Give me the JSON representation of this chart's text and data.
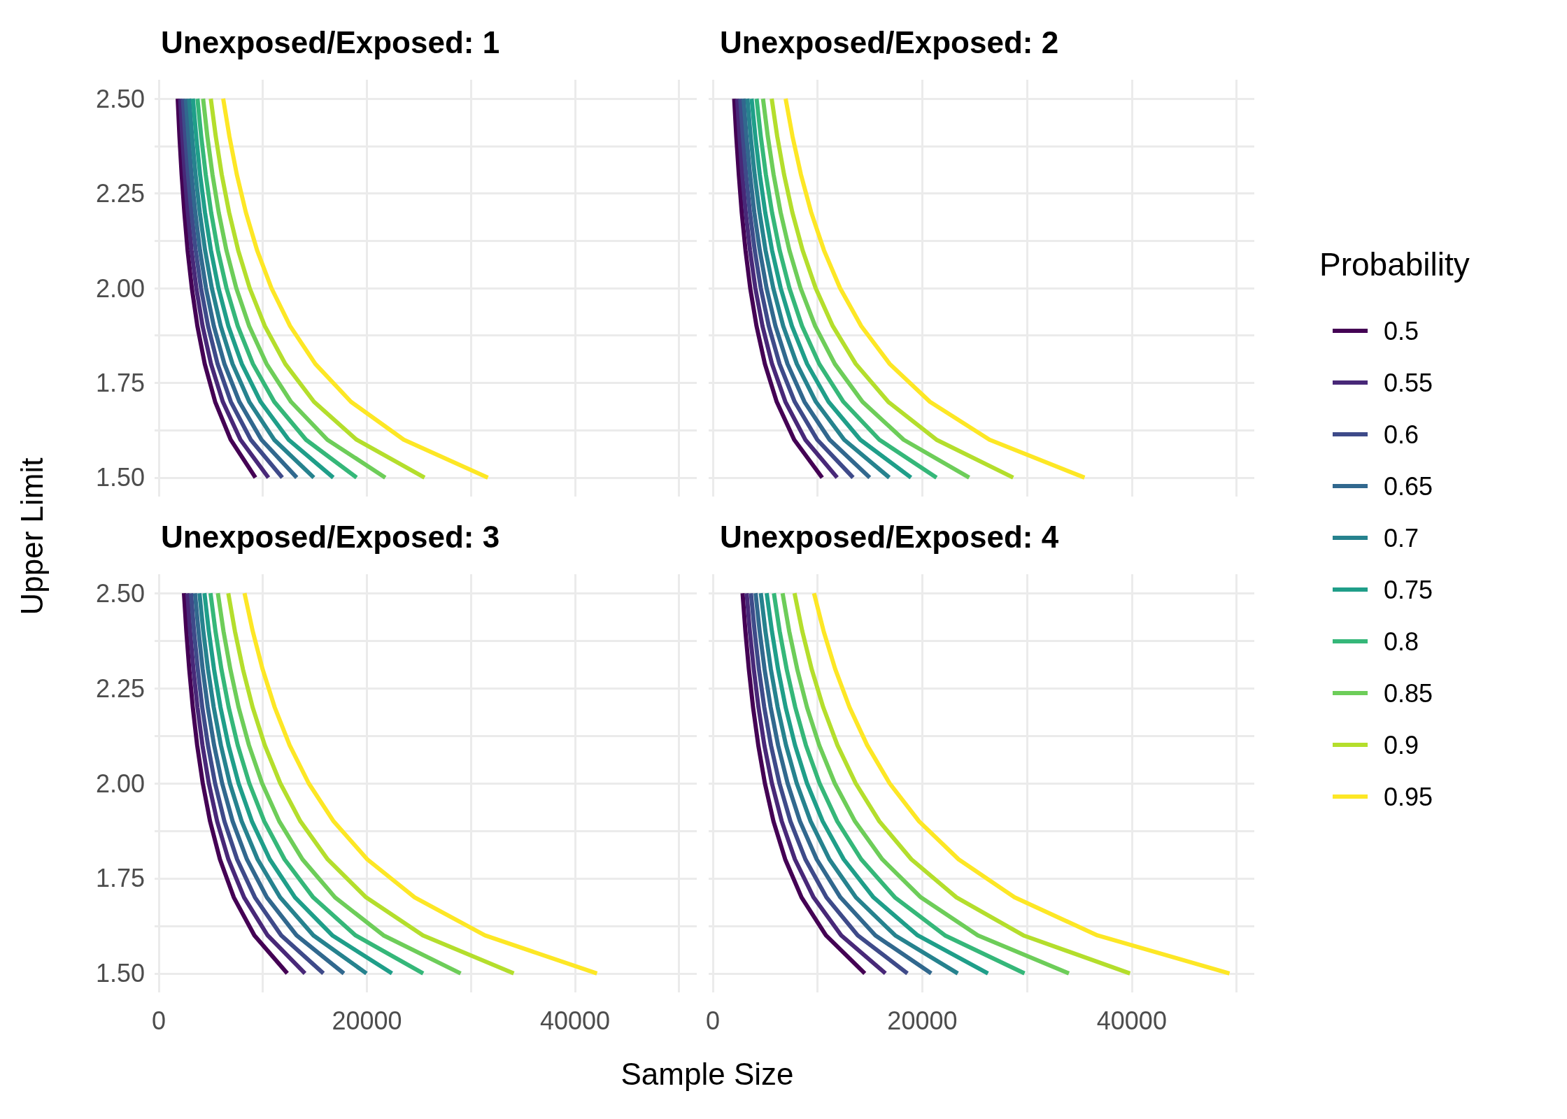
{
  "chart_data": [
    {
      "type": "line",
      "title": "Unexposed/Exposed: 1",
      "xlim": [
        -400,
        51700
      ],
      "ylim": [
        1.45,
        2.55
      ],
      "grid": true,
      "tick_labels": "y",
      "xticks": [
        0,
        10000,
        20000,
        30000,
        40000,
        50000
      ],
      "yticks": [
        {
          "value": 1.5,
          "label": "1.50"
        },
        {
          "value": 1.625,
          "label": null
        },
        {
          "value": 1.75,
          "label": "1.75"
        },
        {
          "value": 1.875,
          "label": null
        },
        {
          "value": 2,
          "label": "2.00"
        },
        {
          "value": 2.125,
          "label": null
        },
        {
          "value": 2.25,
          "label": "2.25"
        },
        {
          "value": 2.375,
          "label": null
        },
        {
          "value": 2.5,
          "label": "2.50"
        }
      ],
      "series": [
        {
          "color": "#440154",
          "x": [
            9290,
            6910,
            5420,
            4420,
            3710,
            3180,
            2770,
            2460,
            2200,
            1990,
            1820
          ],
          "values": [
            1.5,
            1.6,
            1.7,
            1.8,
            1.9,
            2.0,
            2.1,
            2.2,
            2.3,
            2.4,
            2.5
          ]
        },
        {
          "color": "#482878",
          "x": [
            10540,
            7850,
            6160,
            5020,
            4210,
            3610,
            3150,
            2790,
            2500,
            2260,
            2060
          ],
          "values": [
            1.5,
            1.6,
            1.7,
            1.8,
            1.9,
            2.0,
            2.1,
            2.2,
            2.3,
            2.4,
            2.5
          ]
        },
        {
          "color": "#3e4a89",
          "x": [
            11870,
            8840,
            6930,
            5650,
            4740,
            4060,
            3550,
            3140,
            2810,
            2550,
            2320
          ],
          "values": [
            1.5,
            1.6,
            1.7,
            1.8,
            1.9,
            2.0,
            2.1,
            2.2,
            2.3,
            2.4,
            2.5
          ]
        },
        {
          "color": "#31688e",
          "x": [
            13260,
            9870,
            7750,
            6310,
            5290,
            4540,
            3960,
            3510,
            3140,
            2850,
            2600
          ],
          "values": [
            1.5,
            1.6,
            1.7,
            1.8,
            1.9,
            2.0,
            2.1,
            2.2,
            2.3,
            2.4,
            2.5
          ]
        },
        {
          "color": "#26828e",
          "x": [
            14900,
            11090,
            8700,
            7090,
            5950,
            5100,
            4450,
            3940,
            3530,
            3200,
            2920
          ],
          "values": [
            1.5,
            1.6,
            1.7,
            1.8,
            1.9,
            2.0,
            2.1,
            2.2,
            2.3,
            2.4,
            2.5
          ]
        },
        {
          "color": "#1f9e89",
          "x": [
            16770,
            12480,
            9790,
            7980,
            6690,
            5740,
            5010,
            4440,
            3970,
            3600,
            3280
          ],
          "values": [
            1.5,
            1.6,
            1.7,
            1.8,
            1.9,
            2.0,
            2.1,
            2.2,
            2.3,
            2.4,
            2.5
          ]
        },
        {
          "color": "#35b779",
          "x": [
            19010,
            14150,
            11100,
            9050,
            7590,
            6510,
            5680,
            5030,
            4510,
            4080,
            3720
          ],
          "values": [
            1.5,
            1.6,
            1.7,
            1.8,
            1.9,
            2.0,
            2.1,
            2.2,
            2.3,
            2.4,
            2.5
          ]
        },
        {
          "color": "#6dcd59",
          "x": [
            21770,
            16200,
            12710,
            10360,
            8690,
            7450,
            6500,
            5760,
            5160,
            4670,
            4260
          ],
          "values": [
            1.5,
            1.6,
            1.7,
            1.8,
            1.9,
            2.0,
            2.1,
            2.2,
            2.3,
            2.4,
            2.5
          ]
        },
        {
          "color": "#b4de2c",
          "x": [
            25540,
            19010,
            14920,
            12160,
            10190,
            8740,
            7630,
            6760,
            6050,
            5480,
            5000
          ],
          "values": [
            1.5,
            1.6,
            1.7,
            1.8,
            1.9,
            2.0,
            2.1,
            2.2,
            2.3,
            2.4,
            2.5
          ]
        },
        {
          "color": "#fde725",
          "x": [
            31630,
            23550,
            18470,
            15050,
            12620,
            10830,
            9450,
            8370,
            7500,
            6790,
            6190
          ],
          "values": [
            1.5,
            1.6,
            1.7,
            1.8,
            1.9,
            2.0,
            2.1,
            2.2,
            2.3,
            2.4,
            2.5
          ]
        }
      ]
    },
    {
      "type": "line",
      "title": "Unexposed/Exposed: 2",
      "legend_title": "Probability",
      "legend": "right",
      "xlim": [
        -400,
        51700
      ],
      "ylim": [
        1.45,
        2.55
      ],
      "grid": true,
      "tick_labels": false,
      "xticks": [
        0,
        10000,
        20000,
        30000,
        40000,
        50000
      ],
      "yticks": [
        1.5,
        1.625,
        1.75,
        1.875,
        2,
        2.125,
        2.25,
        2.375,
        2.5
      ],
      "series": [
        {
          "name": "0.5",
          "color": "#440154",
          "x": [
            10440,
            7770,
            6100,
            4970,
            4170,
            3570,
            3120,
            2760,
            2480,
            2240,
            2040
          ],
          "values": [
            1.5,
            1.6,
            1.7,
            1.8,
            1.9,
            2.0,
            2.1,
            2.2,
            2.3,
            2.4,
            2.5
          ]
        },
        {
          "name": "0.55",
          "color": "#482878",
          "x": [
            11870,
            8830,
            6930,
            5650,
            4740,
            4060,
            3550,
            3140,
            2810,
            2550,
            2320
          ],
          "values": [
            1.5,
            1.6,
            1.7,
            1.8,
            1.9,
            2.0,
            2.1,
            2.2,
            2.3,
            2.4,
            2.5
          ]
        },
        {
          "name": "0.6",
          "color": "#3e4a89",
          "x": [
            13390,
            9970,
            7820,
            6370,
            5340,
            4580,
            4000,
            3540,
            3170,
            2870,
            2620
          ],
          "values": [
            1.5,
            1.6,
            1.7,
            1.8,
            1.9,
            2.0,
            2.1,
            2.2,
            2.3,
            2.4,
            2.5
          ]
        },
        {
          "name": "0.65",
          "color": "#31688e",
          "x": [
            14980,
            11150,
            8750,
            7130,
            5980,
            5130,
            4480,
            3960,
            3550,
            3210,
            2930
          ],
          "values": [
            1.5,
            1.6,
            1.7,
            1.8,
            1.9,
            2.0,
            2.1,
            2.2,
            2.3,
            2.4,
            2.5
          ]
        },
        {
          "name": "0.7",
          "color": "#26828e",
          "x": [
            16850,
            12540,
            9840,
            8020,
            6720,
            5770,
            5030,
            4460,
            3990,
            3610,
            3300
          ],
          "values": [
            1.5,
            1.6,
            1.7,
            1.8,
            1.9,
            2.0,
            2.1,
            2.2,
            2.3,
            2.4,
            2.5
          ]
        },
        {
          "name": "0.75",
          "color": "#1f9e89",
          "x": [
            18920,
            14080,
            11050,
            9000,
            7550,
            6480,
            5650,
            5000,
            4480,
            4060,
            3700
          ],
          "values": [
            1.5,
            1.6,
            1.7,
            1.8,
            1.9,
            2.0,
            2.1,
            2.2,
            2.3,
            2.4,
            2.5
          ]
        },
        {
          "name": "0.8",
          "color": "#35b779",
          "x": [
            21360,
            15900,
            12470,
            10160,
            8520,
            7310,
            6380,
            5650,
            5060,
            4580,
            4180
          ],
          "values": [
            1.5,
            1.6,
            1.7,
            1.8,
            1.9,
            2.0,
            2.1,
            2.2,
            2.3,
            2.4,
            2.5
          ]
        },
        {
          "name": "0.85",
          "color": "#6dcd59",
          "x": [
            24480,
            18220,
            14290,
            11650,
            9770,
            8380,
            7310,
            6470,
            5800,
            5250,
            4790
          ],
          "values": [
            1.5,
            1.6,
            1.7,
            1.8,
            1.9,
            2.0,
            2.1,
            2.2,
            2.3,
            2.4,
            2.5
          ]
        },
        {
          "name": "0.9",
          "color": "#b4de2c",
          "x": [
            28680,
            21350,
            16750,
            13650,
            11450,
            9820,
            8570,
            7590,
            6800,
            6150,
            5620
          ],
          "values": [
            1.5,
            1.6,
            1.7,
            1.8,
            1.9,
            2.0,
            2.1,
            2.2,
            2.3,
            2.4,
            2.5
          ]
        },
        {
          "name": "0.95",
          "color": "#fde725",
          "x": [
            35490,
            26420,
            20730,
            16890,
            14170,
            12150,
            10610,
            9390,
            8410,
            7610,
            6950
          ],
          "values": [
            1.5,
            1.6,
            1.7,
            1.8,
            1.9,
            2.0,
            2.1,
            2.2,
            2.3,
            2.4,
            2.5
          ]
        }
      ]
    },
    {
      "type": "line",
      "title": "Unexposed/Exposed: 3",
      "xlabel": "Sample Size",
      "ylabel": "Upper Limit",
      "xlim": [
        -400,
        51700
      ],
      "ylim": [
        1.45,
        2.55
      ],
      "grid": true,
      "xticks": [
        0,
        {
          "value": 10000,
          "label": null
        },
        20000,
        {
          "value": 30000,
          "label": null
        },
        40000,
        {
          "value": 50000,
          "label": null
        }
      ],
      "yticks": [
        {
          "value": 1.5,
          "label": "1.50"
        },
        {
          "value": 1.625,
          "label": null
        },
        {
          "value": 1.75,
          "label": "1.75"
        },
        {
          "value": 1.875,
          "label": null
        },
        {
          "value": 2,
          "label": "2.00"
        },
        {
          "value": 2.125,
          "label": null
        },
        {
          "value": 2.25,
          "label": "2.25"
        },
        {
          "value": 2.375,
          "label": null
        },
        {
          "value": 2.5,
          "label": "2.50"
        }
      ],
      "series": [
        {
          "color": "#440154",
          "x": [
            12350,
            9190,
            7210,
            5880,
            4930,
            4230,
            3690,
            3270,
            2930,
            2650,
            2420
          ],
          "values": [
            1.5,
            1.6,
            1.7,
            1.8,
            1.9,
            2.0,
            2.1,
            2.2,
            2.3,
            2.4,
            2.5
          ]
        },
        {
          "color": "#482878",
          "x": [
            14050,
            10460,
            8200,
            6690,
            5610,
            4810,
            4200,
            3720,
            3330,
            3010,
            2750
          ],
          "values": [
            1.5,
            1.6,
            1.7,
            1.8,
            1.9,
            2.0,
            2.1,
            2.2,
            2.3,
            2.4,
            2.5
          ]
        },
        {
          "color": "#3e4a89",
          "x": [
            15820,
            11770,
            9240,
            7530,
            6310,
            5410,
            4730,
            4180,
            3750,
            3390,
            3100
          ],
          "values": [
            1.5,
            1.6,
            1.7,
            1.8,
            1.9,
            2.0,
            2.1,
            2.2,
            2.3,
            2.4,
            2.5
          ]
        },
        {
          "color": "#31688e",
          "x": [
            17790,
            13240,
            10390,
            8470,
            7100,
            6090,
            5320,
            4710,
            4220,
            3820,
            3480
          ],
          "values": [
            1.5,
            1.6,
            1.7,
            1.8,
            1.9,
            2.0,
            2.1,
            2.2,
            2.3,
            2.4,
            2.5
          ]
        },
        {
          "color": "#26828e",
          "x": [
            19960,
            14860,
            11660,
            9500,
            7970,
            6830,
            5970,
            5280,
            4730,
            4280,
            3910
          ],
          "values": [
            1.5,
            1.6,
            1.7,
            1.8,
            1.9,
            2.0,
            2.1,
            2.2,
            2.3,
            2.4,
            2.5
          ]
        },
        {
          "color": "#1f9e89",
          "x": [
            22410,
            16680,
            13090,
            10670,
            8950,
            7670,
            6700,
            5930,
            5310,
            4810,
            4390
          ],
          "values": [
            1.5,
            1.6,
            1.7,
            1.8,
            1.9,
            2.0,
            2.1,
            2.2,
            2.3,
            2.4,
            2.5
          ]
        },
        {
          "color": "#35b779",
          "x": [
            25410,
            18910,
            14840,
            12090,
            10140,
            8700,
            7590,
            6720,
            6020,
            5450,
            4970
          ],
          "values": [
            1.5,
            1.6,
            1.7,
            1.8,
            1.9,
            2.0,
            2.1,
            2.2,
            2.3,
            2.4,
            2.5
          ]
        },
        {
          "color": "#6dcd59",
          "x": [
            29010,
            21600,
            16940,
            13810,
            11580,
            9930,
            8670,
            7670,
            6880,
            6220,
            5680
          ],
          "values": [
            1.5,
            1.6,
            1.7,
            1.8,
            1.9,
            2.0,
            2.1,
            2.2,
            2.3,
            2.4,
            2.5
          ]
        },
        {
          "color": "#b4de2c",
          "x": [
            34110,
            25390,
            19920,
            16230,
            13610,
            11680,
            10190,
            9020,
            8090,
            7320,
            6680
          ],
          "values": [
            1.5,
            1.6,
            1.7,
            1.8,
            1.9,
            2.0,
            2.1,
            2.2,
            2.3,
            2.4,
            2.5
          ]
        },
        {
          "color": "#fde725",
          "x": [
            42110,
            31340,
            24590,
            20040,
            16800,
            14410,
            12580,
            11140,
            9980,
            9030,
            8240
          ],
          "values": [
            1.5,
            1.6,
            1.7,
            1.8,
            1.9,
            2.0,
            2.1,
            2.2,
            2.3,
            2.4,
            2.5
          ]
        }
      ]
    },
    {
      "type": "line",
      "title": "Unexposed/Exposed: 4",
      "xlim": [
        -400,
        51700
      ],
      "ylim": [
        1.45,
        2.55
      ],
      "grid": true,
      "tick_labels": "x",
      "xticks": [
        0,
        {
          "value": 10000,
          "label": null
        },
        20000,
        {
          "value": 30000,
          "label": null
        },
        40000,
        {
          "value": 50000,
          "label": null
        }
      ],
      "yticks": [
        1.5,
        1.625,
        1.75,
        1.875,
        2,
        2.125,
        2.25,
        2.375,
        2.5
      ],
      "series": [
        {
          "color": "#440154",
          "x": [
            14510,
            10800,
            8470,
            6910,
            5790,
            4970,
            4340,
            3840,
            3440,
            3110,
            2840
          ],
          "values": [
            1.5,
            1.6,
            1.7,
            1.8,
            1.9,
            2.0,
            2.1,
            2.2,
            2.3,
            2.4,
            2.5
          ]
        },
        {
          "color": "#482878",
          "x": [
            16480,
            12260,
            9620,
            7840,
            6580,
            5640,
            4920,
            4360,
            3910,
            3530,
            3230
          ],
          "values": [
            1.5,
            1.6,
            1.7,
            1.8,
            1.9,
            2.0,
            2.1,
            2.2,
            2.3,
            2.4,
            2.5
          ]
        },
        {
          "color": "#3e4a89",
          "x": [
            18580,
            13830,
            10850,
            8840,
            7410,
            6360,
            5550,
            4910,
            4400,
            3990,
            3640
          ],
          "values": [
            1.5,
            1.6,
            1.7,
            1.8,
            1.9,
            2.0,
            2.1,
            2.2,
            2.3,
            2.4,
            2.5
          ]
        },
        {
          "color": "#31688e",
          "x": [
            20850,
            15520,
            12180,
            9920,
            8320,
            7140,
            6230,
            5520,
            4940,
            4470,
            4080
          ],
          "values": [
            1.5,
            1.6,
            1.7,
            1.8,
            1.9,
            2.0,
            2.1,
            2.2,
            2.3,
            2.4,
            2.5
          ]
        },
        {
          "color": "#26828e",
          "x": [
            23390,
            17410,
            13660,
            11130,
            9340,
            8010,
            6990,
            6190,
            5540,
            5020,
            4580
          ],
          "values": [
            1.5,
            1.6,
            1.7,
            1.8,
            1.9,
            2.0,
            2.1,
            2.2,
            2.3,
            2.4,
            2.5
          ]
        },
        {
          "color": "#1f9e89",
          "x": [
            26270,
            19560,
            15340,
            12500,
            10490,
            8990,
            7850,
            6950,
            6230,
            5640,
            5140
          ],
          "values": [
            1.5,
            1.6,
            1.7,
            1.8,
            1.9,
            2.0,
            2.1,
            2.2,
            2.3,
            2.4,
            2.5
          ]
        },
        {
          "color": "#35b779",
          "x": [
            29760,
            22160,
            17380,
            14170,
            11880,
            10190,
            8890,
            7870,
            7050,
            6380,
            5830
          ],
          "values": [
            1.5,
            1.6,
            1.7,
            1.8,
            1.9,
            2.0,
            2.1,
            2.2,
            2.3,
            2.4,
            2.5
          ]
        },
        {
          "color": "#6dcd59",
          "x": [
            34000,
            25310,
            19860,
            16180,
            13570,
            11640,
            10160,
            8990,
            8060,
            7290,
            6660
          ],
          "values": [
            1.5,
            1.6,
            1.7,
            1.8,
            1.9,
            2.0,
            2.1,
            2.2,
            2.3,
            2.4,
            2.5
          ]
        },
        {
          "color": "#b4de2c",
          "x": [
            39830,
            29650,
            23260,
            18960,
            15900,
            13640,
            11900,
            10540,
            9440,
            8540,
            7800
          ],
          "values": [
            1.5,
            1.6,
            1.7,
            1.8,
            1.9,
            2.0,
            2.1,
            2.2,
            2.3,
            2.4,
            2.5
          ]
        },
        {
          "color": "#fde725",
          "x": [
            49330,
            36720,
            28810,
            23470,
            19690,
            16880,
            14740,
            13050,
            11690,
            10580,
            9660
          ],
          "values": [
            1.5,
            1.6,
            1.7,
            1.8,
            1.9,
            2.0,
            2.1,
            2.2,
            2.3,
            2.4,
            2.5
          ]
        }
      ]
    }
  ]
}
